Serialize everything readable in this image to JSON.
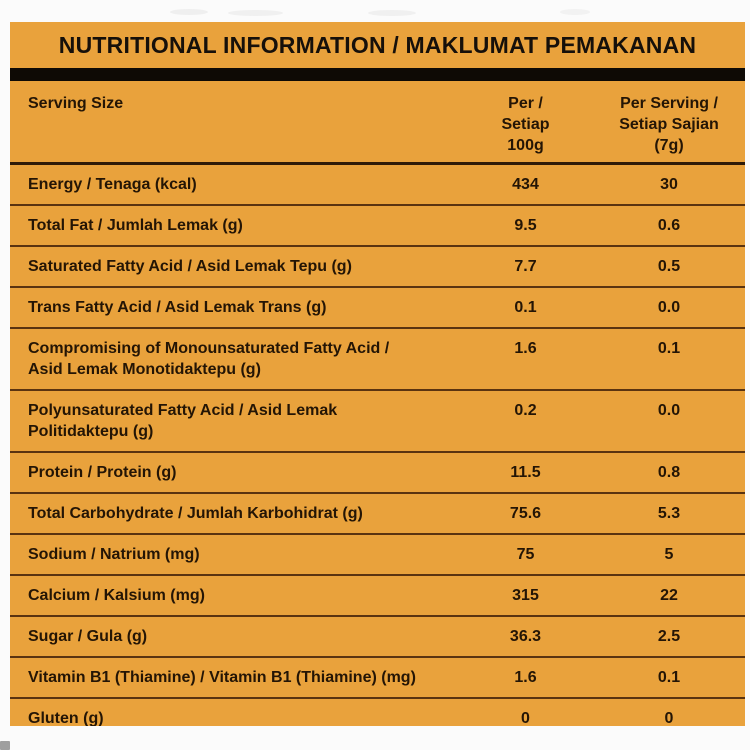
{
  "page": {
    "background_color": "#FBFBFB"
  },
  "label": {
    "title": "NUTRITIONAL INFORMATION / MAKLUMAT PEMAKANAN",
    "colors": {
      "background": "#E9A23C",
      "title_bar": "#0E0A05",
      "text": "#241505",
      "divider": "#5a3310"
    },
    "header": {
      "serving_size": "Serving Size",
      "col_per_100g": "Per /\nSetiap\n100g",
      "col_per_serving": "Per Serving /\nSetiap Sajian\n(7g)"
    },
    "rows": [
      {
        "label": "Energy / Tenaga (kcal)",
        "label2": "",
        "per100": "434",
        "perServing": "30"
      },
      {
        "label": "Total Fat / Jumlah Lemak (g)",
        "label2": "",
        "per100": "9.5",
        "perServing": "0.6"
      },
      {
        "label": "Saturated Fatty Acid / Asid Lemak Tepu (g)",
        "label2": "",
        "per100": "7.7",
        "perServing": "0.5"
      },
      {
        "label": "Trans Fatty Acid / Asid Lemak Trans (g)",
        "label2": "",
        "per100": "0.1",
        "perServing": "0.0"
      },
      {
        "label": "Compromising of Monounsaturated Fatty Acid /",
        "label2": "Asid Lemak Monotidaktepu (g)",
        "per100": "1.6",
        "perServing": "0.1"
      },
      {
        "label": "Polyunsaturated Fatty Acid / Asid Lemak",
        "label2": "Politidaktepu (g)",
        "per100": "0.2",
        "perServing": "0.0"
      },
      {
        "label": "Protein / Protein (g)",
        "label2": "",
        "per100": "11.5",
        "perServing": "0.8"
      },
      {
        "label": "Total Carbohydrate / Jumlah Karbohidrat (g)",
        "label2": "",
        "per100": "75.6",
        "perServing": "5.3"
      },
      {
        "label": "Sodium / Natrium (mg)",
        "label2": "",
        "per100": "75",
        "perServing": "5"
      },
      {
        "label": "Calcium / Kalsium (mg)",
        "label2": "",
        "per100": "315",
        "perServing": "22"
      },
      {
        "label": "Sugar / Gula (g)",
        "label2": "",
        "per100": "36.3",
        "perServing": "2.5"
      },
      {
        "label": "Vitamin B1 (Thiamine) / Vitamin B1 (Thiamine) (mg)",
        "label2": "",
        "per100": "1.6",
        "perServing": "0.1"
      },
      {
        "label": "Gluten (g)",
        "label2": "",
        "per100": "0",
        "perServing": "0"
      }
    ]
  }
}
